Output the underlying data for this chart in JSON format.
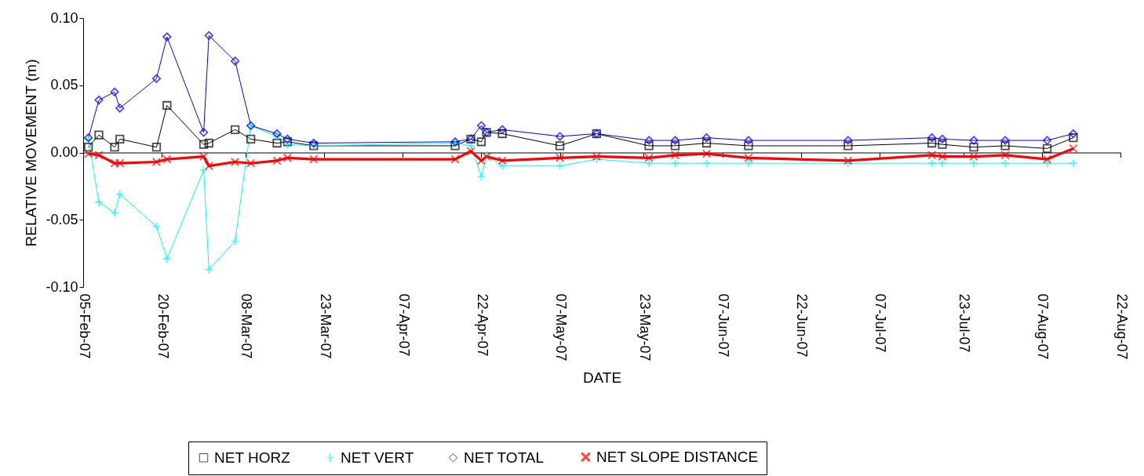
{
  "chart_data": {
    "type": "line",
    "xlabel": "DATE",
    "ylabel": "RELATIVE MOVEMENT (m)",
    "x": [
      "--02-06",
      "--02-08",
      "--02-11",
      "--02-12",
      "--02-19",
      "--02-21",
      "--02-28",
      "--03-01",
      "--03-06",
      "--03-09",
      "--03-14",
      "--03-16",
      "--03-21",
      "--04-17",
      "--04-20",
      "--04-22",
      "--04-23",
      "--04-26",
      "--05-07",
      "--05-14",
      "--05-24",
      "--05-29",
      "--06-04",
      "--06-12",
      "--07-01",
      "--07-17",
      "--07-19",
      "--07-25",
      "--07-31",
      "--08-08",
      "--08-13"
    ],
    "series": [
      {
        "name": "NET HORZ",
        "color": "#000000",
        "marker": "square",
        "values": [
          0.004,
          0.013,
          0.004,
          0.01,
          0.004,
          0.035,
          0.006,
          0.007,
          0.017,
          0.01,
          0.007,
          0.008,
          0.005,
          0.005,
          0.01,
          0.008,
          0.015,
          0.014,
          0.005,
          0.014,
          0.005,
          0.005,
          0.007,
          0.005,
          0.005,
          0.007,
          0.006,
          0.004,
          0.005,
          0.003,
          0.011
        ]
      },
      {
        "name": "NET VERT",
        "color": "#00ffff",
        "marker": "cross",
        "values": [
          0.01,
          -0.037,
          -0.045,
          -0.031,
          -0.055,
          -0.079,
          -0.013,
          -0.087,
          -0.066,
          0.02,
          0.012,
          0.006,
          0.005,
          0.007,
          0.005,
          -0.018,
          -0.002,
          -0.01,
          -0.01,
          -0.005,
          -0.008,
          -0.008,
          -0.008,
          -0.008,
          -0.008,
          -0.008,
          -0.008,
          -0.008,
          -0.008,
          -0.008,
          -0.008
        ]
      },
      {
        "name": "NET TOTAL",
        "color": "#0000ff",
        "marker": "diamond",
        "values": [
          0.011,
          0.039,
          0.045,
          0.033,
          0.055,
          0.086,
          0.015,
          0.087,
          0.068,
          0.02,
          0.014,
          0.01,
          0.007,
          0.008,
          0.01,
          0.02,
          0.015,
          0.017,
          0.012,
          0.014,
          0.009,
          0.009,
          0.011,
          0.009,
          0.009,
          0.011,
          0.01,
          0.009,
          0.009,
          0.009,
          0.014
        ]
      },
      {
        "name": "NET SLOPE DISTANCE",
        "color": "#ff0000",
        "marker": "x",
        "values": [
          -0.001,
          -0.002,
          -0.008,
          -0.008,
          -0.007,
          -0.005,
          -0.003,
          -0.01,
          -0.007,
          -0.008,
          -0.006,
          -0.004,
          -0.005,
          -0.005,
          0.001,
          -0.006,
          -0.003,
          -0.006,
          -0.004,
          -0.003,
          -0.004,
          -0.002,
          -0.001,
          -0.004,
          -0.006,
          -0.002,
          -0.003,
          -0.003,
          -0.002,
          -0.005,
          0.003
        ]
      }
    ],
    "xlim": [
      "--02-05",
      "--08-22"
    ],
    "xticks": [
      {
        "value": "--02-05",
        "label": "05-Feb-07"
      },
      {
        "value": "--02-20",
        "label": "20-Feb-07"
      },
      {
        "value": "--03-08",
        "label": "08-Mar-07"
      },
      {
        "value": "--03-23",
        "label": "23-Mar-07"
      },
      {
        "value": "--04-07",
        "label": "07-Apr-07"
      },
      {
        "value": "--04-22",
        "label": "22-Apr-07"
      },
      {
        "value": "--05-07",
        "label": "07-May-07"
      },
      {
        "value": "--05-23",
        "label": "23-May-07"
      },
      {
        "value": "--06-07",
        "label": "07-Jun-07"
      },
      {
        "value": "--06-22",
        "label": "22-Jun-07"
      },
      {
        "value": "--07-07",
        "label": "07-Jul-07"
      },
      {
        "value": "--07-23",
        "label": "23-Jul-07"
      },
      {
        "value": "--08-07",
        "label": "07-Aug-07"
      },
      {
        "value": "--08-22",
        "label": "22-Aug-07"
      }
    ],
    "ylim": [
      -0.1,
      0.1
    ],
    "yticks": [
      {
        "value": -0.1,
        "label": "-0.10"
      },
      {
        "value": -0.05,
        "label": "-0.05"
      },
      {
        "value": 0,
        "label": "0.00"
      },
      {
        "value": 0.05,
        "label": "0.05"
      },
      {
        "value": 0.1,
        "label": "0.10"
      }
    ],
    "legend": "bottom",
    "line_style": "solid"
  }
}
